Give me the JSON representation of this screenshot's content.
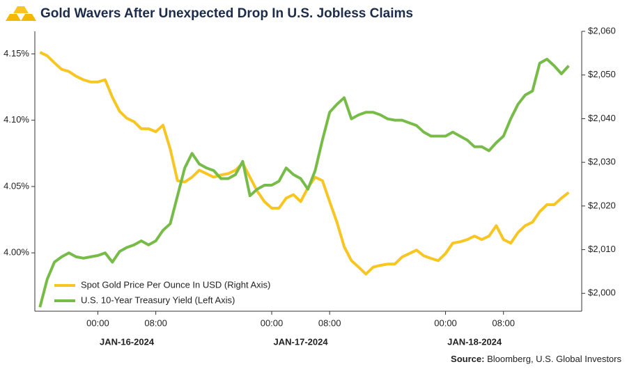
{
  "chart_data": {
    "type": "line",
    "title": "Gold Wavers After Unexpected Drop In U.S. Jobless Claims",
    "source_label": "Source:",
    "source_text": "Bloomberg, U.S. Global Investors",
    "x": [
      -8,
      -7,
      -6,
      -5,
      -4,
      -3,
      -2,
      -1,
      0,
      1,
      2,
      3,
      4,
      5,
      6,
      7,
      8,
      9,
      10,
      11,
      12,
      13,
      14,
      15,
      16,
      17,
      18,
      19,
      20,
      21,
      22,
      23,
      24,
      25,
      26,
      27,
      28,
      29,
      30,
      31,
      32,
      33,
      34,
      35,
      36,
      37,
      38,
      39,
      40,
      41,
      42,
      43,
      44,
      45,
      46,
      47,
      48,
      49,
      50,
      51,
      52,
      53,
      54,
      55,
      56,
      57,
      58,
      59,
      60,
      61,
      62,
      63,
      64,
      65
    ],
    "xlim": [
      -8.7,
      66.8
    ],
    "xticks": [
      {
        "value": 0,
        "label": "00:00"
      },
      {
        "value": 8,
        "label": "08:00"
      },
      {
        "value": 24,
        "label": "00:00"
      },
      {
        "value": 32,
        "label": "08:00"
      },
      {
        "value": 48,
        "label": "00:00"
      },
      {
        "value": 56,
        "label": "08:00"
      }
    ],
    "x_groups": [
      "JAN-16-2024",
      "JAN-17-2024",
      "JAN-18-2024"
    ],
    "ylim": [
      3.956,
      4.167
    ],
    "yticks": [
      {
        "value": 4.0,
        "label": "4.00%"
      },
      {
        "value": 4.05,
        "label": "4.05%"
      },
      {
        "value": 4.1,
        "label": "4.10%"
      },
      {
        "value": 4.15,
        "label": "4.15%"
      }
    ],
    "y2lim": [
      1995.9,
      2060
    ],
    "y2ticks": [
      {
        "value": 2000,
        "label": "$2,000"
      },
      {
        "value": 2010,
        "label": "$2,010"
      },
      {
        "value": 2020,
        "label": "$2,020"
      },
      {
        "value": 2030,
        "label": "$2,030"
      },
      {
        "value": 2040,
        "label": "$2,040"
      },
      {
        "value": 2050,
        "label": "$2,050"
      },
      {
        "value": 2060,
        "label": "$2,060"
      }
    ],
    "legend": "lower left",
    "series": [
      {
        "name": "Spot Gold Price Per Ounce In USD (Right Axis)",
        "color": "#f8c623",
        "axis": "y2",
        "values": [
          2055.2,
          2054.4,
          2052.8,
          2051.3,
          2050.8,
          2049.7,
          2048.9,
          2048.4,
          2048.4,
          2048.9,
          2044.9,
          2041.7,
          2040.1,
          2039.3,
          2037.7,
          2037.7,
          2037.0,
          2038.5,
          2033.0,
          2025.8,
          2025.5,
          2026.6,
          2028.2,
          2027.4,
          2026.6,
          2027.1,
          2027.4,
          2028.2,
          2029.8,
          2026.6,
          2023.4,
          2021.0,
          2019.5,
          2019.5,
          2021.8,
          2022.6,
          2021.0,
          2024.2,
          2026.6,
          2025.8,
          2021.0,
          2016.3,
          2010.7,
          2007.5,
          2006.0,
          2004.4,
          2006.0,
          2006.4,
          2006.7,
          2006.7,
          2008.3,
          2009.1,
          2009.9,
          2008.6,
          2008.0,
          2007.5,
          2009.1,
          2011.5,
          2011.8,
          2012.3,
          2013.1,
          2012.3,
          2013.1,
          2015.5,
          2012.3,
          2011.5,
          2013.9,
          2015.5,
          2016.3,
          2018.7,
          2020.3,
          2020.3,
          2021.8,
          2023.1
        ]
      },
      {
        "name": "U.S. 10-Year Treasury Yield (Left Axis)",
        "color": "#77bb48",
        "axis": "y",
        "values": [
          3.959,
          3.98,
          3.993,
          3.997,
          4.0,
          3.997,
          3.996,
          3.997,
          3.998,
          4.0,
          3.993,
          4.001,
          4.004,
          4.006,
          4.009,
          4.006,
          4.009,
          4.017,
          4.022,
          4.043,
          4.064,
          4.075,
          4.067,
          4.064,
          4.062,
          4.056,
          4.056,
          4.059,
          4.069,
          4.043,
          4.048,
          4.051,
          4.051,
          4.054,
          4.064,
          4.059,
          4.056,
          4.048,
          4.062,
          4.085,
          4.106,
          4.112,
          4.117,
          4.101,
          4.104,
          4.106,
          4.106,
          4.104,
          4.101,
          4.1,
          4.1,
          4.098,
          4.096,
          4.091,
          4.088,
          4.088,
          4.088,
          4.091,
          4.088,
          4.085,
          4.08,
          4.08,
          4.077,
          4.083,
          4.088,
          4.101,
          4.112,
          4.119,
          4.122,
          4.143,
          4.146,
          4.141,
          4.135,
          4.141
        ]
      }
    ]
  }
}
